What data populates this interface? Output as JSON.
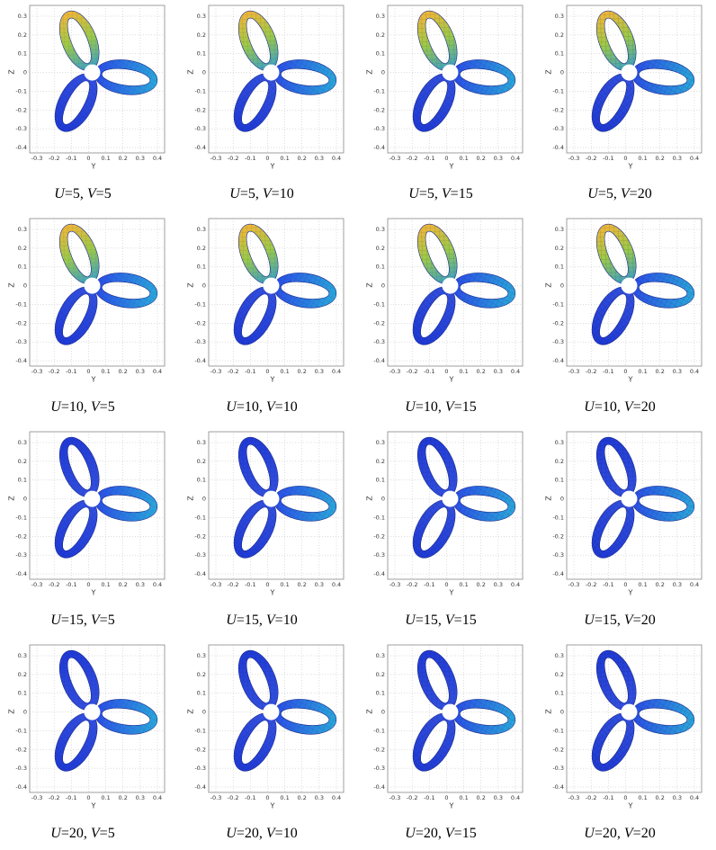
{
  "figure": {
    "axes": {
      "xticks": [
        "-0.3",
        "-0.2",
        "-0.1",
        "0",
        "0.1",
        "0.2",
        "0.3",
        "0.4"
      ],
      "yticks": [
        "0.3",
        "0.2",
        "0.1",
        "0",
        "-0.1",
        "-0.2",
        "-0.3",
        "-0.4"
      ],
      "x_label": "Y",
      "y_label": "Z"
    },
    "panels": [
      {
        "caption": [
          "U",
          "=5, ",
          "V",
          "=5"
        ]
      },
      {
        "caption": [
          "U",
          "=5, ",
          "V",
          "=10"
        ]
      },
      {
        "caption": [
          "U",
          "=5, ",
          "V",
          "=15"
        ]
      },
      {
        "caption": [
          "U",
          "=5, ",
          "V",
          "=20"
        ]
      },
      {
        "caption": [
          "U",
          "=10, ",
          "V",
          "=5"
        ]
      },
      {
        "caption": [
          "U",
          "=10, ",
          "V",
          "=10"
        ]
      },
      {
        "caption": [
          "U",
          "=10, ",
          "V",
          "=15"
        ]
      },
      {
        "caption": [
          "U",
          "=10, ",
          "V",
          "=20"
        ]
      },
      {
        "caption": [
          "U",
          "=15, ",
          "V",
          "=5"
        ]
      },
      {
        "caption": [
          "U",
          "=15, ",
          "V",
          "=10"
        ]
      },
      {
        "caption": [
          "U",
          "=15, ",
          "V",
          "=15"
        ]
      },
      {
        "caption": [
          "U",
          "=15, ",
          "V",
          "=20"
        ]
      },
      {
        "caption": [
          "U",
          "=20, ",
          "V",
          "=5"
        ]
      },
      {
        "caption": [
          "U",
          "=20, ",
          "V",
          "=10"
        ]
      },
      {
        "caption": [
          "U",
          "=20, ",
          "V",
          "=15"
        ]
      },
      {
        "caption": [
          "U",
          "=20, ",
          "V",
          "=20"
        ]
      }
    ]
  }
}
